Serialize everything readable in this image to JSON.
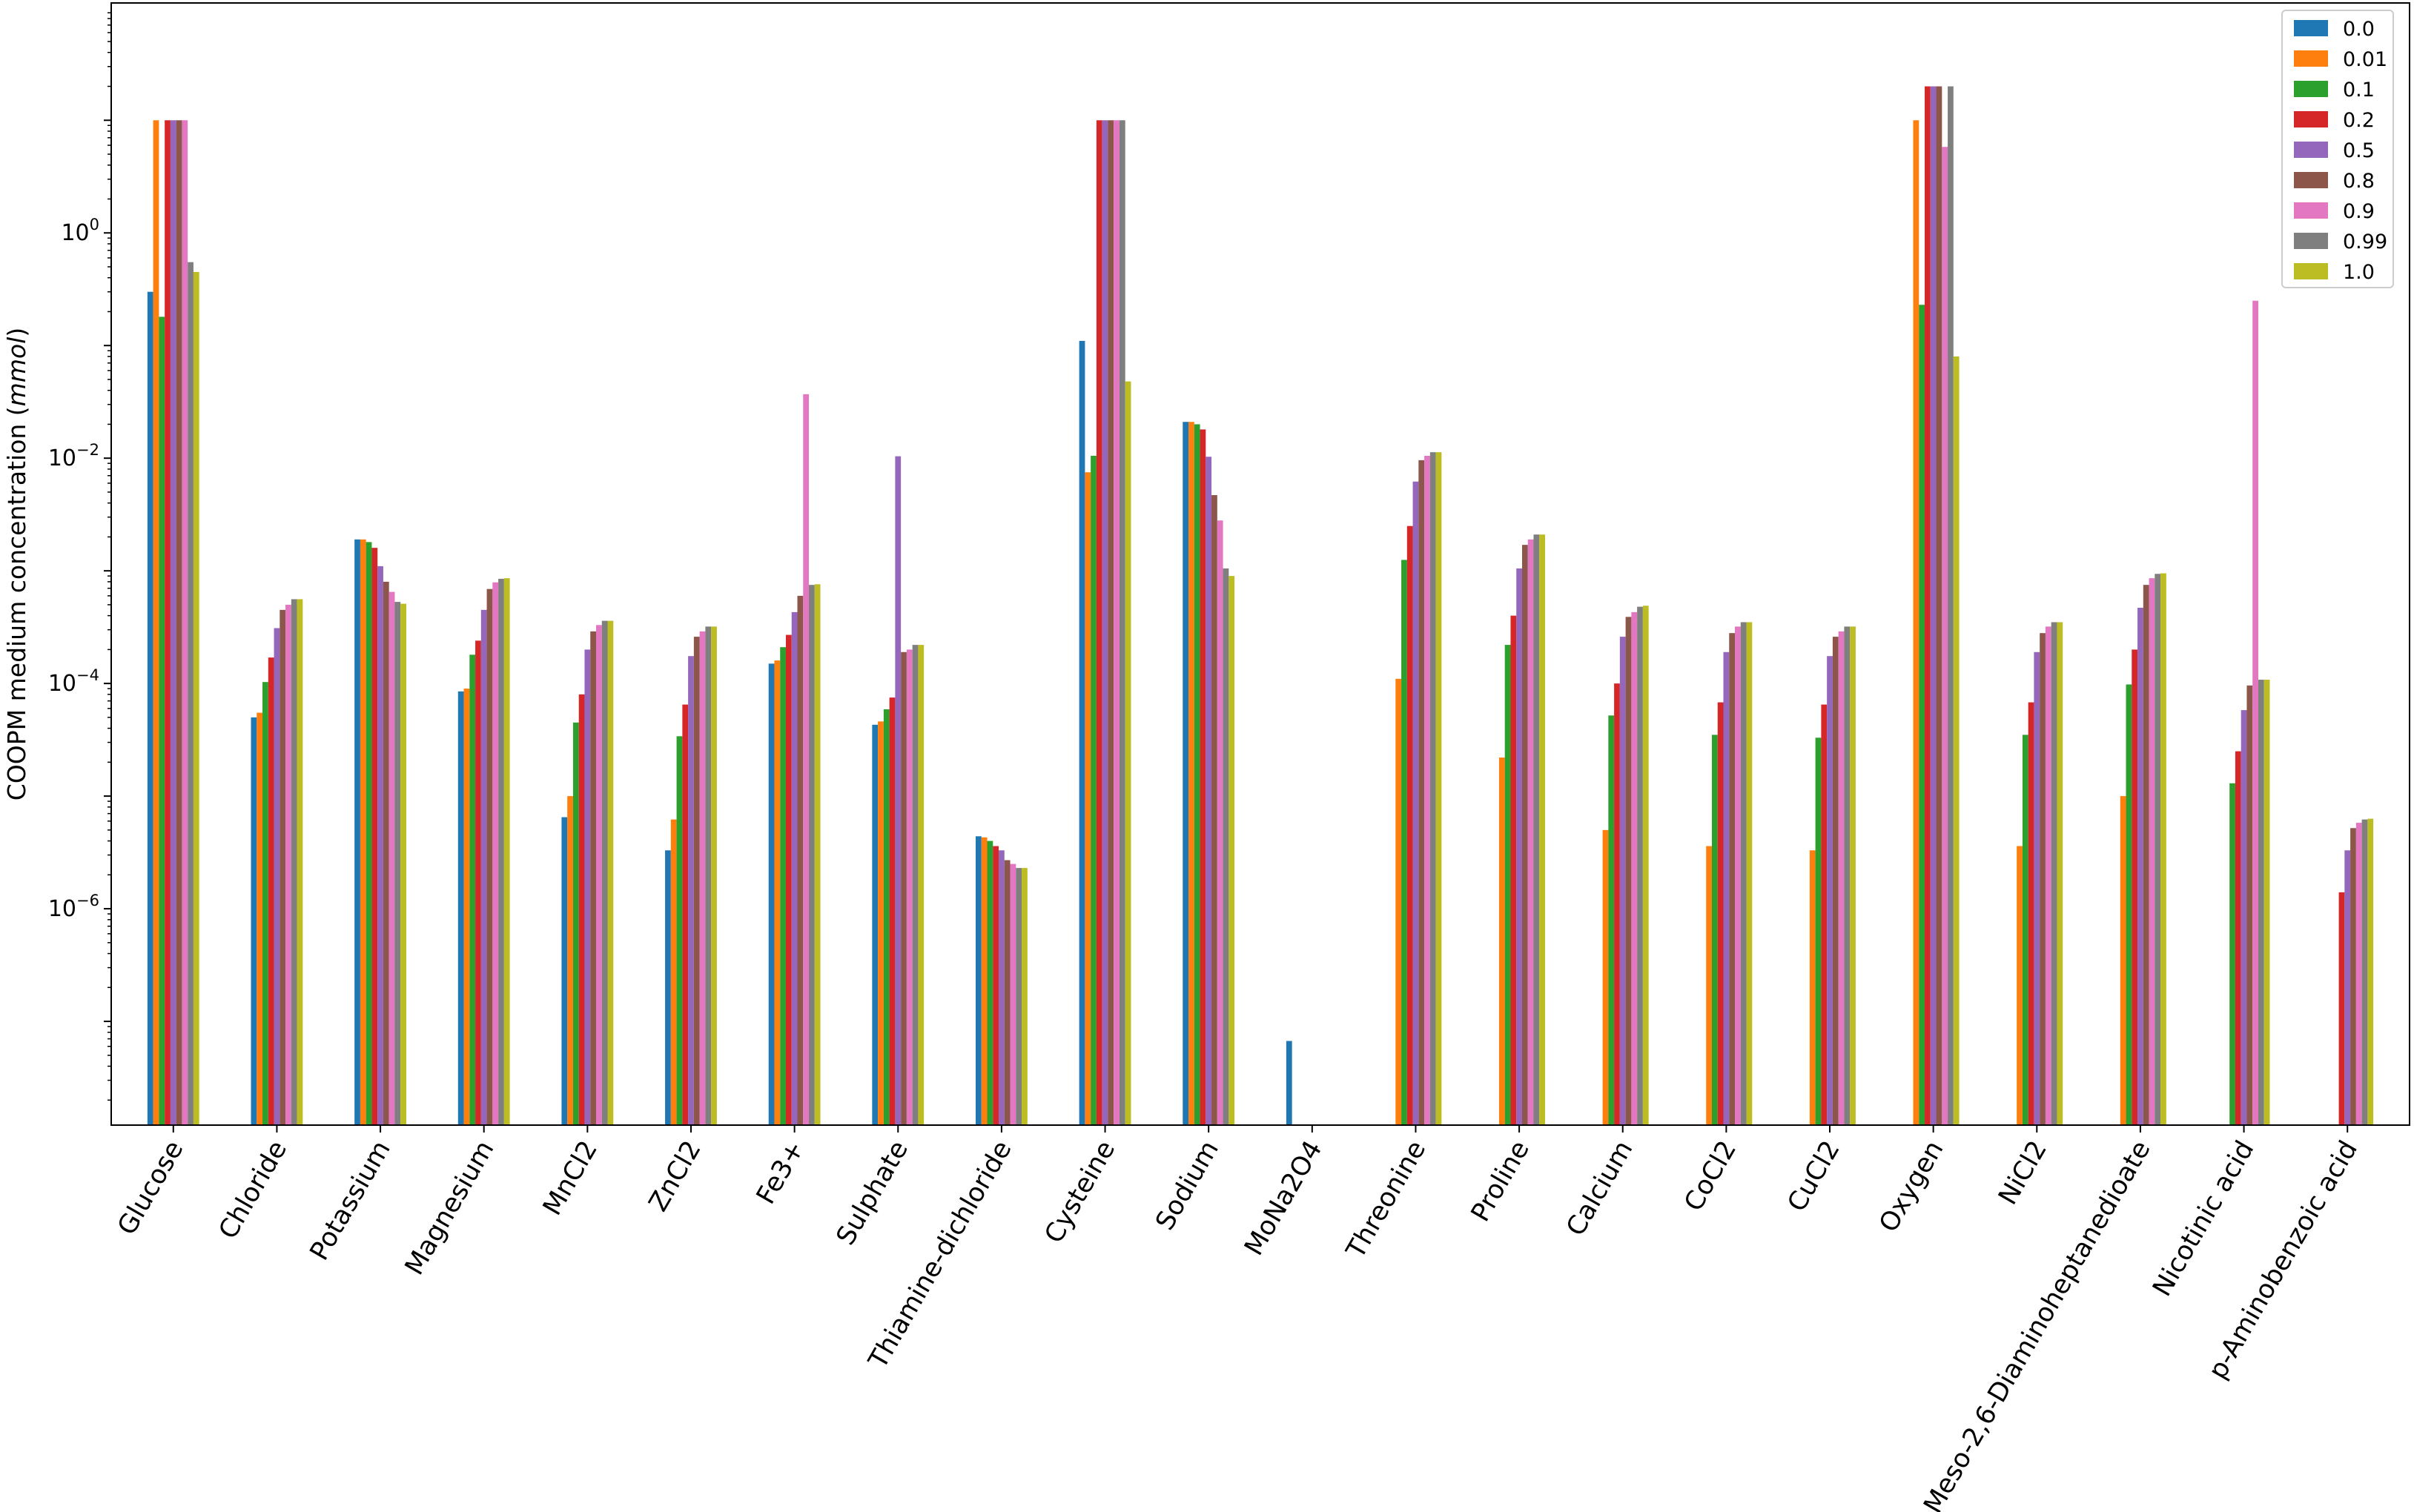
{
  "chart_data": {
    "type": "bar",
    "ylabel": "COOPM medium concentration",
    "ylabel_unit": "mmol",
    "yscale": "log",
    "ylim": [
      1.2e-08,
      110
    ],
    "yticks": [
      {
        "value": 1,
        "base": "10",
        "exp": "0"
      },
      {
        "value": 0.01,
        "base": "10",
        "exp": "−2"
      },
      {
        "value": 0.0001,
        "base": "10",
        "exp": "−4"
      },
      {
        "value": 1e-06,
        "base": "10",
        "exp": "−6"
      }
    ],
    "legend_position": "top-right",
    "colors": [
      "#1f77b4",
      "#ff7f0e",
      "#2ca02c",
      "#d62728",
      "#9467bd",
      "#8c564b",
      "#e377c2",
      "#7f7f7f",
      "#bcbd22"
    ],
    "categories": [
      "Glucose",
      "Chloride",
      "Potassium",
      "Magnesium",
      "MnCl2",
      "ZnCl2",
      "Fe3+",
      "Sulphate",
      "Thiamine-dichloride",
      "Cysteine",
      "Sodium",
      "MoNa2O4",
      "Threonine",
      "Proline",
      "Calcium",
      "CoCl2",
      "CuCl2",
      "Oxygen",
      "NiCl2",
      "Meso-2,6-Diaminoheptanedioate",
      "Nicotinic acid",
      "p-Aminobenzoic acid"
    ],
    "series": [
      {
        "name": "0.0",
        "values": [
          0.3,
          5e-05,
          0.0019,
          8.5e-05,
          6.5e-06,
          3.3e-06,
          0.00015,
          4.3e-05,
          4.4e-06,
          0.11,
          0.021,
          6.7e-08,
          null,
          null,
          null,
          null,
          null,
          null,
          null,
          null,
          null,
          null
        ]
      },
      {
        "name": "0.01",
        "values": [
          10,
          5.5e-05,
          0.0019,
          9e-05,
          1e-05,
          6.2e-06,
          0.00016,
          4.6e-05,
          4.3e-06,
          0.0075,
          0.021,
          null,
          0.00011,
          2.2e-05,
          5e-06,
          3.6e-06,
          3.3e-06,
          10,
          3.6e-06,
          1e-05,
          null,
          null
        ]
      },
      {
        "name": "0.1",
        "values": [
          0.18,
          0.000103,
          0.0018,
          0.00018,
          4.5e-05,
          3.4e-05,
          0.00021,
          5.9e-05,
          4e-06,
          0.0105,
          0.02,
          null,
          0.00125,
          0.00022,
          5.2e-05,
          3.5e-05,
          3.3e-05,
          0.23,
          3.5e-05,
          9.8e-05,
          1.3e-05,
          null
        ]
      },
      {
        "name": "0.2",
        "values": [
          10,
          0.00017,
          0.0016,
          0.00024,
          8e-05,
          6.5e-05,
          0.00027,
          7.5e-05,
          3.6e-06,
          10,
          0.018,
          null,
          0.0025,
          0.0004,
          0.0001,
          6.8e-05,
          6.5e-05,
          20,
          6.8e-05,
          0.0002,
          2.5e-05,
          1.4e-06
        ]
      },
      {
        "name": "0.5",
        "values": [
          10,
          0.00031,
          0.0011,
          0.00045,
          0.0002,
          0.000175,
          0.00043,
          0.0104,
          3.3e-06,
          10,
          0.0103,
          null,
          0.0062,
          0.00105,
          0.00026,
          0.00019,
          0.000175,
          20,
          0.00019,
          0.00047,
          5.8e-05,
          3.3e-06
        ]
      },
      {
        "name": "0.8",
        "values": [
          10,
          0.00045,
          0.0008,
          0.00069,
          0.00029,
          0.00026,
          0.0006,
          0.00019,
          2.7e-06,
          10,
          0.0047,
          null,
          0.0096,
          0.0017,
          0.00039,
          0.00028,
          0.00026,
          20,
          0.00028,
          0.00075,
          9.6e-05,
          5.2e-06
        ]
      },
      {
        "name": "0.9",
        "values": [
          10,
          0.0005,
          0.00065,
          0.00079,
          0.00033,
          0.00029,
          0.037,
          0.0002,
          2.5e-06,
          10,
          0.0028,
          null,
          0.0105,
          0.0019,
          0.00043,
          0.00032,
          0.00029,
          5.8,
          0.00032,
          0.00086,
          0.25,
          5.8e-06
        ]
      },
      {
        "name": "0.99",
        "values": [
          0.55,
          0.00056,
          0.00053,
          0.00085,
          0.00036,
          0.00032,
          0.00075,
          0.00022,
          2.3e-06,
          10,
          0.00105,
          null,
          0.0113,
          0.0021,
          0.00048,
          0.00035,
          0.00032,
          20,
          0.00035,
          0.00094,
          0.000108,
          6.2e-06
        ]
      },
      {
        "name": "1.0",
        "values": [
          0.45,
          0.00056,
          0.00051,
          0.00086,
          0.00036,
          0.00032,
          0.00076,
          0.00022,
          2.3e-06,
          0.048,
          0.0009,
          null,
          0.0113,
          0.0021,
          0.00049,
          0.00035,
          0.00032,
          0.08,
          0.00035,
          0.00095,
          0.000108,
          6.3e-06
        ]
      }
    ]
  }
}
